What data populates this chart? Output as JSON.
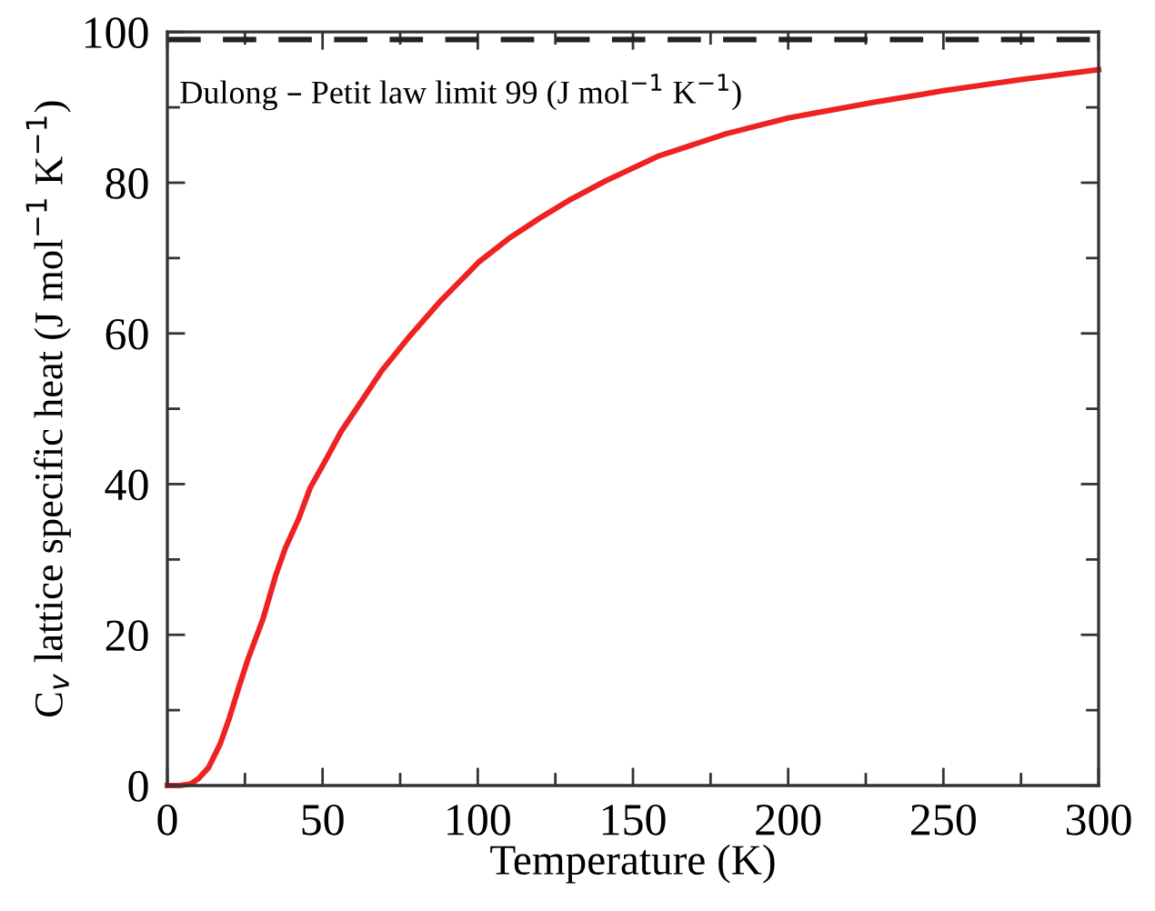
{
  "chart_data": {
    "type": "line",
    "xlabel": "Temperature (K)",
    "ylabel": "C$_{v}$ lattice specific heat (J mol$^{−1}$ K$^{−1}$)",
    "x": [
      0,
      4,
      7.5,
      10,
      13.3,
      17,
      20,
      23,
      26,
      30.8,
      35,
      38,
      42.4,
      46,
      51.3,
      56,
      61.7,
      69,
      77.2,
      88,
      100.4,
      110,
      120,
      130,
      141,
      158,
      180,
      200,
      228,
      250,
      275,
      300
    ],
    "series": [
      {
        "color": "#ee2222",
        "values": [
          0,
          0,
          0.2,
          0.9,
          2.4,
          5.5,
          9,
          13,
          16.8,
          22.1,
          28,
          31.5,
          35.5,
          39.5,
          43.4,
          47,
          50.5,
          55,
          59.2,
          64.3,
          69.5,
          72.6,
          75.3,
          77.8,
          80.2,
          83.5,
          86.5,
          88.6,
          90.7,
          92.2,
          93.7,
          95.0
        ]
      }
    ],
    "xlim": [
      0,
      300
    ],
    "ylim": [
      0,
      100
    ],
    "xticks": [
      0,
      50,
      100,
      150,
      200,
      250,
      300
    ],
    "yticks": [
      0,
      20,
      40,
      60,
      80,
      100
    ],
    "ref_lines": [
      {
        "axis": "y",
        "value": 99,
        "label": "Dulong – Petit law limit 99 (J mol$^{−1}$ K$^{−1}$)",
        "color": "#222222",
        "line_style": "dashed"
      }
    ],
    "grid": false,
    "legend": false,
    "marker": "none",
    "line_style": "solid"
  }
}
